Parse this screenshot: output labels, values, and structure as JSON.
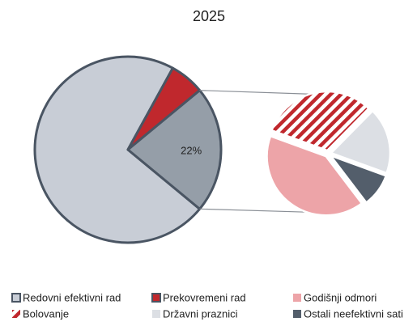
{
  "chart_data": {
    "type": "pie",
    "title": "2025",
    "categories": [
      "Redovni efektivni rad",
      "Prekovremeni rad",
      null
    ],
    "values": [
      72,
      6,
      22
    ],
    "value_labels": [
      null,
      null,
      "22%"
    ],
    "colors": [
      "#c8cdd6",
      "#c0282d",
      "#959ea8"
    ],
    "secondary": {
      "categories": [
        "Bolovanje",
        "Državni praznici",
        "Ostali neefektivni sati",
        "Godišnji odmori"
      ],
      "values": [
        7,
        4,
        2,
        9
      ],
      "colors": [
        "#c0282d",
        "#dcdfe4",
        "#535e6b",
        "#eda4a8"
      ],
      "hatch": [
        true,
        false,
        false,
        false
      ]
    }
  }
}
